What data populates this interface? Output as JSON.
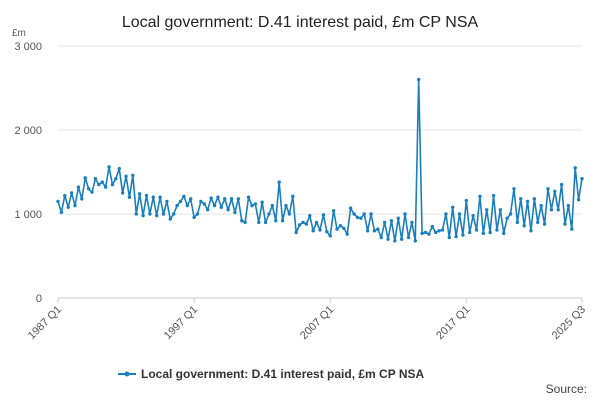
{
  "chart_data": {
    "type": "line",
    "title": "Local government: D.41 interest paid, £m CP NSA",
    "unit_label": "£m",
    "source_label": "Source:",
    "xlabel": "",
    "ylabel": "",
    "ylim": [
      0,
      3000
    ],
    "y_ticks": [
      0,
      1000,
      2000,
      3000
    ],
    "y_tick_labels": [
      "0",
      "1 000",
      "2 000",
      "3 000"
    ],
    "x_ticks": [
      "1987 Q1",
      "1997 Q1",
      "2007 Q1",
      "2017 Q1",
      "2025 Q3"
    ],
    "grid": true,
    "legend_position": "bottom",
    "series": [
      {
        "name": "Local government: D.41 interest paid, £m CP NSA",
        "color": "#1a7fbf",
        "x": [
          "1987 Q1",
          "1987 Q2",
          "1987 Q3",
          "1987 Q4",
          "1988 Q1",
          "1988 Q2",
          "1988 Q3",
          "1988 Q4",
          "1989 Q1",
          "1989 Q2",
          "1989 Q3",
          "1989 Q4",
          "1990 Q1",
          "1990 Q2",
          "1990 Q3",
          "1990 Q4",
          "1991 Q1",
          "1991 Q2",
          "1991 Q3",
          "1991 Q4",
          "1992 Q1",
          "1992 Q2",
          "1992 Q3",
          "1992 Q4",
          "1993 Q1",
          "1993 Q2",
          "1993 Q3",
          "1993 Q4",
          "1994 Q1",
          "1994 Q2",
          "1994 Q3",
          "1994 Q4",
          "1995 Q1",
          "1995 Q2",
          "1995 Q3",
          "1995 Q4",
          "1996 Q1",
          "1996 Q2",
          "1996 Q3",
          "1996 Q4",
          "1997 Q1",
          "1997 Q2",
          "1997 Q3",
          "1997 Q4",
          "1998 Q1",
          "1998 Q2",
          "1998 Q3",
          "1998 Q4",
          "1999 Q1",
          "1999 Q2",
          "1999 Q3",
          "1999 Q4",
          "2000 Q1",
          "2000 Q2",
          "2000 Q3",
          "2000 Q4",
          "2001 Q1",
          "2001 Q2",
          "2001 Q3",
          "2001 Q4",
          "2002 Q1",
          "2002 Q2",
          "2002 Q3",
          "2002 Q4",
          "2003 Q1",
          "2003 Q2",
          "2003 Q3",
          "2003 Q4",
          "2004 Q1",
          "2004 Q2",
          "2004 Q3",
          "2004 Q4",
          "2005 Q1",
          "2005 Q2",
          "2005 Q3",
          "2005 Q4",
          "2006 Q1",
          "2006 Q2",
          "2006 Q3",
          "2006 Q4",
          "2007 Q1",
          "2007 Q2",
          "2007 Q3",
          "2007 Q4",
          "2008 Q1",
          "2008 Q2",
          "2008 Q3",
          "2008 Q4",
          "2009 Q1",
          "2009 Q2",
          "2009 Q3",
          "2009 Q4",
          "2010 Q1",
          "2010 Q2",
          "2010 Q3",
          "2010 Q4",
          "2011 Q1",
          "2011 Q2",
          "2011 Q3",
          "2011 Q4",
          "2012 Q1",
          "2012 Q2",
          "2012 Q3",
          "2012 Q4",
          "2013 Q1",
          "2013 Q2",
          "2013 Q3",
          "2013 Q4",
          "2014 Q1",
          "2014 Q2",
          "2014 Q3",
          "2014 Q4",
          "2015 Q1",
          "2015 Q2",
          "2015 Q3",
          "2015 Q4",
          "2016 Q1",
          "2016 Q2",
          "2016 Q3",
          "2016 Q4",
          "2017 Q1",
          "2017 Q2",
          "2017 Q3",
          "2017 Q4",
          "2018 Q1",
          "2018 Q2",
          "2018 Q3",
          "2018 Q4",
          "2019 Q1",
          "2019 Q2",
          "2019 Q3",
          "2019 Q4",
          "2020 Q1",
          "2020 Q2",
          "2020 Q3",
          "2020 Q4",
          "2021 Q1",
          "2021 Q2",
          "2021 Q3",
          "2021 Q4",
          "2022 Q1",
          "2022 Q2",
          "2022 Q3",
          "2022 Q4",
          "2023 Q1",
          "2023 Q2",
          "2023 Q3",
          "2023 Q4",
          "2024 Q1",
          "2024 Q2",
          "2024 Q3",
          "2024 Q4",
          "2025 Q1",
          "2025 Q2",
          "2025 Q3"
        ],
        "values": [
          1150,
          1020,
          1220,
          1080,
          1250,
          1100,
          1320,
          1180,
          1430,
          1300,
          1260,
          1420,
          1350,
          1380,
          1320,
          1560,
          1350,
          1420,
          1540,
          1250,
          1450,
          1200,
          1460,
          1000,
          1240,
          980,
          1220,
          1000,
          1200,
          980,
          1200,
          1000,
          1150,
          940,
          1000,
          1100,
          1150,
          1210,
          1100,
          1180,
          960,
          1000,
          1150,
          1120,
          1050,
          1190,
          1100,
          1200,
          1080,
          1180,
          1050,
          1180,
          1020,
          1180,
          920,
          900,
          1200,
          1100,
          1120,
          900,
          1140,
          900,
          1000,
          1100,
          920,
          1380,
          920,
          1100,
          1000,
          1210,
          780,
          870,
          900,
          880,
          980,
          800,
          900,
          810,
          990,
          790,
          740,
          1040,
          820,
          860,
          830,
          760,
          1070,
          1000,
          960,
          950,
          1000,
          800,
          1000,
          800,
          820,
          720,
          900,
          700,
          920,
          680,
          950,
          700,
          1000,
          720,
          900,
          680,
          2600,
          770,
          780,
          760,
          850,
          780,
          800,
          810,
          1000,
          720,
          1080,
          730,
          1000,
          750,
          1160,
          780,
          980,
          810,
          1210,
          770,
          1050,
          780,
          1220,
          810,
          1050,
          770,
          950,
          1000,
          1300,
          900,
          1180,
          860,
          1150,
          800,
          1180,
          900,
          1100,
          880,
          1300,
          1050,
          1270,
          1050,
          1350,
          880,
          1100,
          820,
          1550,
          1170,
          1420
        ]
      }
    ]
  }
}
